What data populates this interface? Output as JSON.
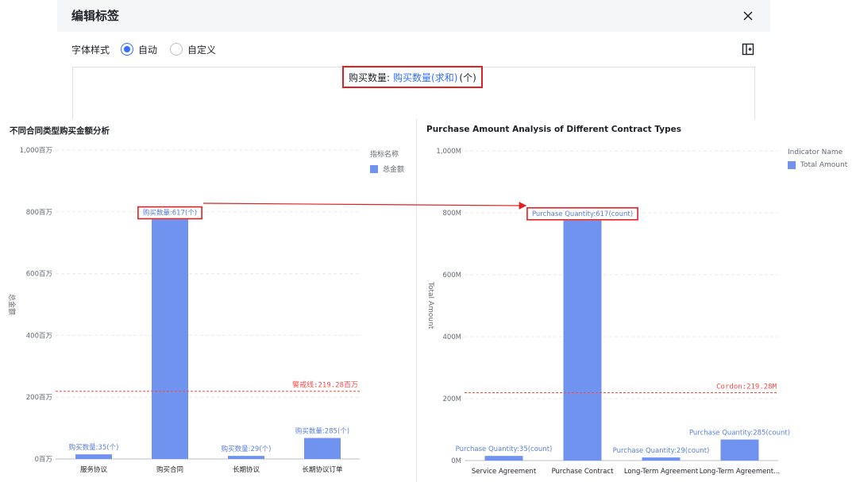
{
  "dialog": {
    "title": "编辑标签",
    "font_style_label": "字体样式",
    "options": [
      "自动",
      "自定义"
    ],
    "selected": "自动",
    "editor": {
      "prefix": "购买数量:",
      "token": "购买数量(求和)",
      "suffix": "(个)"
    }
  },
  "left_chart": {
    "title": "不同合同类型购买金额分析",
    "legend_title": "指标名称",
    "legend_item": "总金额",
    "ylabel": "总金额",
    "warning_label": "警戒线:219.28百万",
    "chart_data": {
      "type": "bar",
      "categories": [
        "服务协议",
        "购买合同",
        "长期协议",
        "长期协议订单"
      ],
      "values": [
        15,
        775,
        10,
        68
      ],
      "series": [
        {
          "name": "总金额",
          "values": [
            15,
            775,
            10,
            68
          ]
        }
      ],
      "data_labels": [
        "购买数量:35(个)",
        "购买数量:617(个)",
        "购买数量:29(个)",
        "购买数量:285(个)"
      ],
      "yticks": [
        "0百万",
        "200百万",
        "400百万",
        "600百万",
        "800百万",
        "1,000百万"
      ],
      "ylim": [
        0,
        1000
      ],
      "warning_value": 219.28,
      "colors": {
        "bar": "#6f93ee",
        "warning": "#f54a45"
      }
    }
  },
  "right_chart": {
    "title": "Purchase Amount Analysis of Different Contract Types",
    "legend_title": "Indicator Name",
    "legend_item": "Total Amount",
    "ylabel": "Total Amount",
    "warning_label": "Cordon:219.28M",
    "chart_data": {
      "type": "bar",
      "categories": [
        "Service Agreement",
        "Purchase Contract",
        "Long-Term Agreement",
        "Long-Term Agreement..."
      ],
      "values": [
        15,
        775,
        10,
        68
      ],
      "series": [
        {
          "name": "Total Amount",
          "values": [
            15,
            775,
            10,
            68
          ]
        }
      ],
      "data_labels": [
        "Purchase Quantity:35(count)",
        "Purchase Quantity:617(count)",
        "Purchase Quantity:29(count)",
        "Purchase Quantity:285(count)"
      ],
      "yticks": [
        "0M",
        "200M",
        "400M",
        "600M",
        "800M",
        "1,000M"
      ],
      "ylim": [
        0,
        1000
      ],
      "warning_value": 219.28,
      "colors": {
        "bar": "#6f93ee",
        "warning": "#f54a45"
      }
    }
  }
}
